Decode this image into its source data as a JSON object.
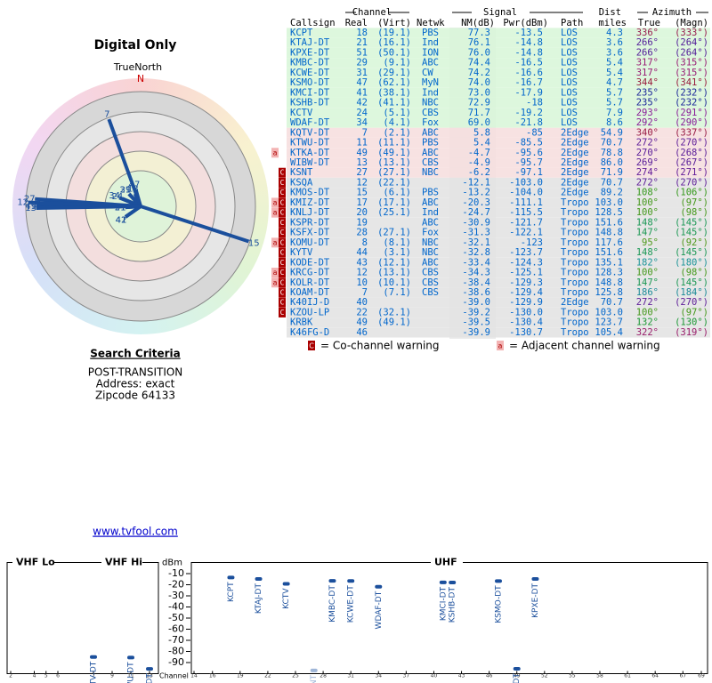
{
  "header": {
    "title": "Digital Only",
    "north_label": "TrueNorth",
    "north": "N"
  },
  "search": {
    "title": "Search Criteria",
    "lines": [
      "POST-TRANSITION",
      "Address: exact",
      "Zipcode 64133"
    ]
  },
  "link": "www.tvfool.com",
  "table": {
    "groups": {
      "channel": "Channel",
      "signal": "Signal",
      "dist": "Dist",
      "azimuth": "Azimuth"
    },
    "columns": {
      "callsign": "Callsign",
      "real": "Real",
      "virt": "(Virt)",
      "netwk": "Netwk",
      "nm": "NM(dB)",
      "pwr": "Pwr(dBm)",
      "path": "Path",
      "dist": "miles",
      "az_true": "True",
      "az_magn": "(Magn)"
    },
    "rows": [
      {
        "callsign": "KCPT",
        "real": 18,
        "virt": "(19.1)",
        "netwk": "PBS",
        "nm": 77.3,
        "pwr": -13.5,
        "path": "LOS",
        "dist": "4.3",
        "az_true": {
          "value": 336,
          "label": "336°"
        },
        "az_magn": {
          "value": 333,
          "label": "(333°)"
        },
        "warn": [],
        "color": "#d9f6d9"
      },
      {
        "callsign": "KTAJ-DT",
        "real": 21,
        "virt": "(16.1)",
        "netwk": "Ind",
        "nm": 76.1,
        "pwr": -14.8,
        "path": "LOS",
        "dist": "3.6",
        "az_true": {
          "value": 266,
          "label": "266°"
        },
        "az_magn": {
          "value": 264,
          "label": "(264°)"
        },
        "warn": [],
        "color": "#d9f6d9"
      },
      {
        "callsign": "KPXE-DT",
        "real": 51,
        "virt": "(50.1)",
        "netwk": "ION",
        "nm": {
          "value": 76,
          "label": "76.0"
        },
        "pwr": -14.8,
        "path": "LOS",
        "dist": "3.6",
        "az_true": {
          "value": 266,
          "label": "266°"
        },
        "az_magn": {
          "value": 264,
          "label": "(264°)"
        },
        "warn": [],
        "color": "#d9f6d9"
      },
      {
        "callsign": "KMBC-DT",
        "real": 29,
        "virt": "(9.1)",
        "netwk": "ABC",
        "nm": 74.4,
        "pwr": -16.5,
        "path": "LOS",
        "dist": "5.4",
        "az_true": {
          "value": 317,
          "label": "317°"
        },
        "az_magn": {
          "value": 315,
          "label": "(315°)"
        },
        "warn": [],
        "color": "#d9f6d9"
      },
      {
        "callsign": "KCWE-DT",
        "real": 31,
        "virt": "(29.1)",
        "netwk": "CW",
        "nm": 74.2,
        "pwr": -16.6,
        "path": "LOS",
        "dist": "5.4",
        "az_true": {
          "value": 317,
          "label": "317°"
        },
        "az_magn": {
          "value": 315,
          "label": "(315°)"
        },
        "warn": [],
        "color": "#d9f6d9"
      },
      {
        "callsign": "KSMO-DT",
        "real": 47,
        "virt": "(62.1)",
        "netwk": "MyN",
        "nm": {
          "value": 74,
          "label": "74.0"
        },
        "pwr": -16.7,
        "path": "LOS",
        "dist": "4.7",
        "az_true": {
          "value": 344,
          "label": "344°"
        },
        "az_magn": {
          "value": 341,
          "label": "(341°)"
        },
        "warn": [],
        "color": "#d9f6d9"
      },
      {
        "callsign": "KMCI-DT",
        "real": 41,
        "virt": "(38.1)",
        "netwk": "Ind",
        "nm": {
          "value": 73,
          "label": "73.0"
        },
        "pwr": -17.9,
        "path": "LOS",
        "dist": "5.7",
        "az_true": {
          "value": 235,
          "label": "235°"
        },
        "az_magn": {
          "value": 232,
          "label": "(232°)"
        },
        "warn": [],
        "color": "#d9f6d9"
      },
      {
        "callsign": "KSHB-DT",
        "real": 42,
        "virt": "(41.1)",
        "netwk": "NBC",
        "nm": 72.9,
        "pwr": -18,
        "path": "LOS",
        "dist": "5.7",
        "az_true": {
          "value": 235,
          "label": "235°"
        },
        "az_magn": {
          "value": 232,
          "label": "(232°)"
        },
        "warn": [],
        "color": "#d9f6d9"
      },
      {
        "callsign": "KCTV",
        "real": 24,
        "virt": "(5.1)",
        "netwk": "CBS",
        "nm": 71.7,
        "pwr": -19.2,
        "path": "LOS",
        "dist": "7.9",
        "az_true": {
          "value": 293,
          "label": "293°"
        },
        "az_magn": {
          "value": 291,
          "label": "(291°)"
        },
        "warn": [],
        "color": "#d9f6d9"
      },
      {
        "callsign": "WDAF-DT",
        "real": 34,
        "virt": "(4.1)",
        "netwk": "Fox",
        "nm": {
          "value": 69,
          "label": "69.0"
        },
        "pwr": -21.8,
        "path": "LOS",
        "dist": "8.6",
        "az_true": {
          "value": 292,
          "label": "292°"
        },
        "az_magn": {
          "value": 290,
          "label": "(290°)"
        },
        "warn": [],
        "color": "#d9f6d9"
      },
      {
        "callsign": "KQTV-DT",
        "real": 7,
        "virt": "(2.1)",
        "netwk": "ABC",
        "nm": 5.8,
        "pwr": -85,
        "path": "2Edge",
        "dist": "54.9",
        "az_true": {
          "value": 340,
          "label": "340°"
        },
        "az_magn": {
          "value": 337,
          "label": "(337°)"
        },
        "warn": [],
        "color": "#f6dfdf"
      },
      {
        "callsign": "KTWU-DT",
        "real": 11,
        "virt": "(11.1)",
        "netwk": "PBS",
        "nm": 5.4,
        "pwr": -85.5,
        "path": "2Edge",
        "dist": "70.7",
        "az_true": {
          "value": 272,
          "label": "272°"
        },
        "az_magn": {
          "value": 270,
          "label": "(270°)"
        },
        "warn": [],
        "color": "#f6dfdf"
      },
      {
        "callsign": "KTKA-DT",
        "real": 49,
        "virt": "(49.1)",
        "netwk": "ABC",
        "nm": -4.7,
        "pwr": -95.6,
        "path": "2Edge",
        "dist": "78.8",
        "az_true": {
          "value": 270,
          "label": "270°"
        },
        "az_magn": {
          "value": 268,
          "label": "(268°)"
        },
        "warn": [
          "a"
        ],
        "color": "#f6dfdf"
      },
      {
        "callsign": "WIBW-DT",
        "real": 13,
        "virt": "(13.1)",
        "netwk": "CBS",
        "nm": -4.9,
        "pwr": -95.7,
        "path": "2Edge",
        "dist": "86.0",
        "az_true": {
          "value": 269,
          "label": "269°"
        },
        "az_magn": {
          "value": 267,
          "label": "(267°)"
        },
        "warn": [],
        "color": "#f6dfdf"
      },
      {
        "callsign": "KSNT",
        "real": 27,
        "virt": "(27.1)",
        "netwk": "NBC",
        "nm": -6.2,
        "pwr": -97.1,
        "path": "2Edge",
        "dist": "71.9",
        "az_true": {
          "value": 274,
          "label": "274°"
        },
        "az_magn": {
          "value": 271,
          "label": "(271°)"
        },
        "warn": [
          "C"
        ],
        "color": "#f6dfdf"
      },
      {
        "callsign": "KSQA",
        "real": 12,
        "virt": "(22.1)",
        "netwk": null,
        "nm": -12.1,
        "pwr": {
          "value": -103,
          "label": "-103.0"
        },
        "path": "2Edge",
        "dist": "70.7",
        "az_true": {
          "value": 272,
          "label": "272°"
        },
        "az_magn": {
          "value": 270,
          "label": "(270°)"
        },
        "warn": [
          "C"
        ],
        "color": "#e3e3e3"
      },
      {
        "callsign": "KMOS-DT",
        "real": 15,
        "virt": "(6.1)",
        "netwk": "PBS",
        "nm": -13.2,
        "pwr": {
          "value": -104,
          "label": "-104.0"
        },
        "path": "2Edge",
        "dist": "89.2",
        "az_true": {
          "value": 108,
          "label": "108°"
        },
        "az_magn": {
          "value": 106,
          "label": "(106°)"
        },
        "warn": [
          "C"
        ],
        "color": "#e3e3e3"
      },
      {
        "callsign": "KMIZ-DT",
        "real": 17,
        "virt": "(17.1)",
        "netwk": "ABC",
        "nm": -20.3,
        "pwr": -111.1,
        "path": "Tropo",
        "dist": "103.0",
        "az_true": {
          "value": 100,
          "label": "100°"
        },
        "az_magn": {
          "value": 97,
          "label": "(97°)"
        },
        "warn": [
          "a",
          "C"
        ],
        "color": "#e3e3e3"
      },
      {
        "callsign": "KNLJ-DT",
        "real": 20,
        "virt": "(25.1)",
        "netwk": "Ind",
        "nm": -24.7,
        "pwr": -115.5,
        "path": "Tropo",
        "dist": "128.5",
        "az_true": {
          "value": 100,
          "label": "100°"
        },
        "az_magn": {
          "value": 98,
          "label": "(98°)"
        },
        "warn": [
          "a",
          "C"
        ],
        "color": "#e3e3e3"
      },
      {
        "callsign": "KSPR-DT",
        "real": 19,
        "virt": null,
        "netwk": "ABC",
        "nm": -30.9,
        "pwr": -121.7,
        "path": "Tropo",
        "dist": "151.6",
        "az_true": {
          "value": 148,
          "label": "148°"
        },
        "az_magn": {
          "value": 145,
          "label": "(145°)"
        },
        "warn": [
          "C"
        ],
        "color": "#e3e3e3"
      },
      {
        "callsign": "KSFX-DT",
        "real": 28,
        "virt": "(27.1)",
        "netwk": "Fox",
        "nm": -31.3,
        "pwr": -122.1,
        "path": "Tropo",
        "dist": "148.8",
        "az_true": {
          "value": 147,
          "label": "147°"
        },
        "az_magn": {
          "value": 145,
          "label": "(145°)"
        },
        "warn": [
          "C"
        ],
        "color": "#e3e3e3"
      },
      {
        "callsign": "KOMU-DT",
        "real": 8,
        "virt": "(8.1)",
        "netwk": "NBC",
        "nm": -32.1,
        "pwr": -123,
        "path": "Tropo",
        "dist": "117.6",
        "az_true": {
          "value": 95,
          "label": "95°"
        },
        "az_magn": {
          "value": 92,
          "label": "(92°)"
        },
        "warn": [
          "a",
          "C"
        ],
        "color": "#e3e3e3"
      },
      {
        "callsign": "KYTV",
        "real": 44,
        "virt": "(3.1)",
        "netwk": "NBC",
        "nm": -32.8,
        "pwr": -123.7,
        "path": "Tropo",
        "dist": "151.6",
        "az_true": {
          "value": 148,
          "label": "148°"
        },
        "az_magn": {
          "value": 145,
          "label": "(145°)"
        },
        "warn": [
          "C"
        ],
        "color": "#e3e3e3"
      },
      {
        "callsign": "KODE-DT",
        "real": 43,
        "virt": "(12.1)",
        "netwk": "ABC",
        "nm": -33.4,
        "pwr": -124.3,
        "path": "Tropo",
        "dist": "135.1",
        "az_true": {
          "value": 182,
          "label": "182°"
        },
        "az_magn": {
          "value": 180,
          "label": "(180°)"
        },
        "warn": [
          "C"
        ],
        "color": "#e3e3e3"
      },
      {
        "callsign": "KRCG-DT",
        "real": 12,
        "virt": "(13.1)",
        "netwk": "CBS",
        "nm": -34.3,
        "pwr": -125.1,
        "path": "Tropo",
        "dist": "128.3",
        "az_true": {
          "value": 100,
          "label": "100°"
        },
        "az_magn": {
          "value": 98,
          "label": "(98°)"
        },
        "warn": [
          "a",
          "C"
        ],
        "color": "#e3e3e3"
      },
      {
        "callsign": "KOLR-DT",
        "real": 10,
        "virt": "(10.1)",
        "netwk": "CBS",
        "nm": -38.4,
        "pwr": -129.3,
        "path": "Tropo",
        "dist": "148.8",
        "az_true": {
          "value": 147,
          "label": "147°"
        },
        "az_magn": {
          "value": 145,
          "label": "(145°)"
        },
        "warn": [
          "a",
          "C"
        ],
        "color": "#e3e3e3"
      },
      {
        "callsign": "KOAM-DT",
        "real": 7,
        "virt": "(7.1)",
        "netwk": "CBS",
        "nm": -38.6,
        "pwr": -129.4,
        "path": "Tropo",
        "dist": "125.8",
        "az_true": {
          "value": 186,
          "label": "186°"
        },
        "az_magn": {
          "value": 184,
          "label": "(184°)"
        },
        "warn": [
          "C"
        ],
        "color": "#e3e3e3"
      },
      {
        "callsign": "K40IJ-D",
        "real": 40,
        "virt": null,
        "netwk": null,
        "nm": {
          "value": -39,
          "label": "-39.0"
        },
        "pwr": -129.9,
        "path": "2Edge",
        "dist": "70.7",
        "az_true": {
          "value": 272,
          "label": "272°"
        },
        "az_magn": {
          "value": 270,
          "label": "(270°)"
        },
        "warn": [
          "C"
        ],
        "color": "#e3e3e3"
      },
      {
        "callsign": "KZOU-LP",
        "real": 22,
        "virt": "(32.1)",
        "netwk": null,
        "nm": -39.2,
        "pwr": {
          "value": -130,
          "label": "-130.0"
        },
        "path": "Tropo",
        "dist": "103.0",
        "az_true": {
          "value": 100,
          "label": "100°"
        },
        "az_magn": {
          "value": 97,
          "label": "(97°)"
        },
        "warn": [
          "C"
        ],
        "color": "#e3e3e3"
      },
      {
        "callsign": "KRBK",
        "real": 49,
        "virt": "(49.1)",
        "netwk": null,
        "nm": -39.5,
        "pwr": -130.4,
        "path": "Tropo",
        "dist": "123.7",
        "az_true": {
          "value": 132,
          "label": "132°"
        },
        "az_magn": {
          "value": 130,
          "label": "(130°)"
        },
        "warn": [],
        "color": "#e3e3e3"
      },
      {
        "callsign": "K46FG-D",
        "real": 46,
        "virt": null,
        "netwk": null,
        "nm": -39.9,
        "pwr": -130.7,
        "path": "Tropo",
        "dist": "105.4",
        "az_true": {
          "value": 322,
          "label": "322°"
        },
        "az_magn": {
          "value": 319,
          "label": "(319°)"
        },
        "warn": [],
        "color": "#e3e3e3"
      }
    ]
  },
  "legend": {
    "co": {
      "icon": "C",
      "text": "= Co-channel warning"
    },
    "adj": {
      "icon": "a",
      "text": "= Adjacent channel warning"
    }
  },
  "spectrum": {
    "ylabel": "dBm",
    "xlabel": "Channel",
    "ylim": [
      0,
      -100
    ],
    "yticks": [
      -10,
      -20,
      -30,
      -40,
      -50,
      -60,
      -70,
      -80,
      -90
    ],
    "sections": [
      {
        "name": "VHF Lo",
        "range": [
          2,
          6
        ]
      },
      {
        "name": "VHF Hi",
        "range": [
          7,
          13
        ]
      },
      {
        "name": "UHF",
        "range": [
          14,
          69
        ]
      }
    ],
    "xticks": [
      2,
      4,
      5,
      6,
      7,
      9,
      11,
      13,
      14,
      16,
      19,
      22,
      25,
      28,
      31,
      34,
      37,
      40,
      43,
      46,
      49,
      52,
      55,
      58,
      61,
      64,
      67,
      69
    ]
  }
}
